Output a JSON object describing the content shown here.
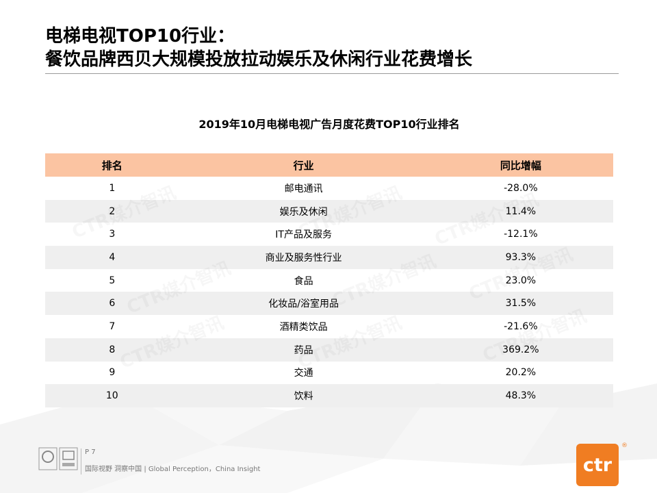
{
  "slide": {
    "title_line1": "电梯电视TOP10行业：",
    "title_line2": "餐饮品牌西贝大规模投放拉动娱乐及休闲行业花费增长"
  },
  "table": {
    "heading": "2019年10月电梯电视广告月度花费TOP10行业排名",
    "columns": [
      "排名",
      "行业",
      "同比增幅"
    ],
    "rows": [
      {
        "rank": "1",
        "industry": "邮电通讯",
        "yoy": "-28.0%"
      },
      {
        "rank": "2",
        "industry": "娱乐及休闲",
        "yoy": "11.4%"
      },
      {
        "rank": "3",
        "industry": "IT产品及服务",
        "yoy": "-12.1%"
      },
      {
        "rank": "4",
        "industry": "商业及服务性行业",
        "yoy": "93.3%"
      },
      {
        "rank": "5",
        "industry": "食品",
        "yoy": "23.0%"
      },
      {
        "rank": "6",
        "industry": "化妆品/浴室用品",
        "yoy": "31.5%"
      },
      {
        "rank": "7",
        "industry": "酒精类饮品",
        "yoy": "-21.6%"
      },
      {
        "rank": "8",
        "industry": "药品",
        "yoy": "369.2%"
      },
      {
        "rank": "9",
        "industry": "交通",
        "yoy": "20.2%"
      },
      {
        "rank": "10",
        "industry": "饮料",
        "yoy": "48.3%"
      }
    ]
  },
  "watermark": "CTR媒介智讯",
  "footer": {
    "page": "P 7",
    "tagline": "国际视野 洞察中国 | Global Perception，China Insight",
    "logo_text": "ctr",
    "logo_reg": "®"
  },
  "colors": {
    "header_fill": "#fbc4a2",
    "stripe_fill": "#efefef",
    "brand_orange": "#f07d22"
  }
}
